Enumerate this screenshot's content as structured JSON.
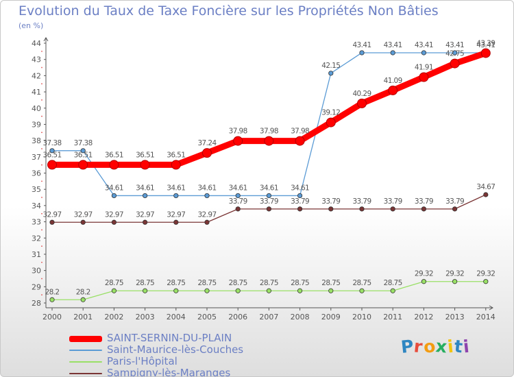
{
  "chart_data": {
    "type": "line",
    "title": "Evolution du Taux de Taxe Foncière sur les Propriétés Non Bâties",
    "ylabel": "(en %)",
    "xlabel": "",
    "ylim": [
      28,
      44
    ],
    "yticks": [
      "28",
      "29",
      "30",
      "31",
      "32",
      "33",
      "34",
      "35",
      "36",
      "37",
      "38",
      "39",
      "40",
      "41",
      "42",
      "43",
      "44"
    ],
    "categories": [
      "2000",
      "2001",
      "2002",
      "2003",
      "2004",
      "2005",
      "2006",
      "2007",
      "2008",
      "2009",
      "2010",
      "2011",
      "2012",
      "2013",
      "2014"
    ],
    "series": [
      {
        "name": "SAINT-SERNIN-DU-PLAIN",
        "color": "#ff0000",
        "values": [
          36.51,
          36.51,
          36.51,
          36.51,
          36.51,
          37.24,
          37.98,
          37.98,
          37.98,
          39.12,
          40.29,
          41.09,
          41.91,
          42.75,
          43.39
        ],
        "labels": [
          "36.51",
          "36.51",
          "36.51",
          "36.51",
          "36.51",
          "37.24",
          "37.98",
          "37.98",
          "37.98",
          "39.12",
          "40.29",
          "41.09",
          "41.91",
          "42.75",
          "43.39"
        ]
      },
      {
        "name": "Saint-Maurice-lès-Couches",
        "color": "#5b9bd5",
        "values": [
          37.38,
          37.38,
          34.61,
          34.61,
          34.61,
          34.61,
          34.61,
          34.61,
          34.61,
          42.15,
          43.41,
          43.41,
          43.41,
          43.41,
          43.41
        ],
        "labels": [
          "37.38",
          "37.38",
          "34.61",
          "34.61",
          "34.61",
          "34.61",
          "34.61",
          "34.61",
          "34.61",
          "42.15",
          "43.41",
          "43.41",
          "43.41",
          "43.41",
          "43.41"
        ]
      },
      {
        "name": "Paris-l'Hôpital",
        "color": "#99e066",
        "values": [
          28.2,
          28.2,
          28.75,
          28.75,
          28.75,
          28.75,
          28.75,
          28.75,
          28.75,
          28.75,
          28.75,
          28.75,
          29.32,
          29.32,
          29.32
        ],
        "labels": [
          "28.2",
          "28.2",
          "28.75",
          "28.75",
          "28.75",
          "28.75",
          "28.75",
          "28.75",
          "28.75",
          "28.75",
          "28.75",
          "28.75",
          "29.32",
          "29.32",
          "29.32"
        ]
      },
      {
        "name": "Sampigny-lès-Maranges",
        "color": "#7a3535",
        "values": [
          32.97,
          32.97,
          32.97,
          32.97,
          32.97,
          32.97,
          33.79,
          33.79,
          33.79,
          33.79,
          33.79,
          33.79,
          33.79,
          33.79,
          34.67
        ],
        "labels": [
          "32.97",
          "32.97",
          "32.97",
          "32.97",
          "32.97",
          "32.97",
          "33.79",
          "33.79",
          "33.79",
          "33.79",
          "33.79",
          "33.79",
          "33.79",
          "33.79",
          "34.67"
        ]
      }
    ],
    "legend_position": "bottom-left",
    "grid": false
  },
  "brand": {
    "letters": [
      "P",
      "r",
      "o",
      "x",
      "i",
      "t",
      "i"
    ],
    "colors": [
      "#2e86c1",
      "#e74c3c",
      "#f39c12",
      "#27ae60",
      "#f1c40f",
      "#2e86c1",
      "#8e44ad"
    ]
  },
  "colors": {
    "title": "#6b7fc4",
    "axis": "#555555",
    "label": "#555555"
  }
}
